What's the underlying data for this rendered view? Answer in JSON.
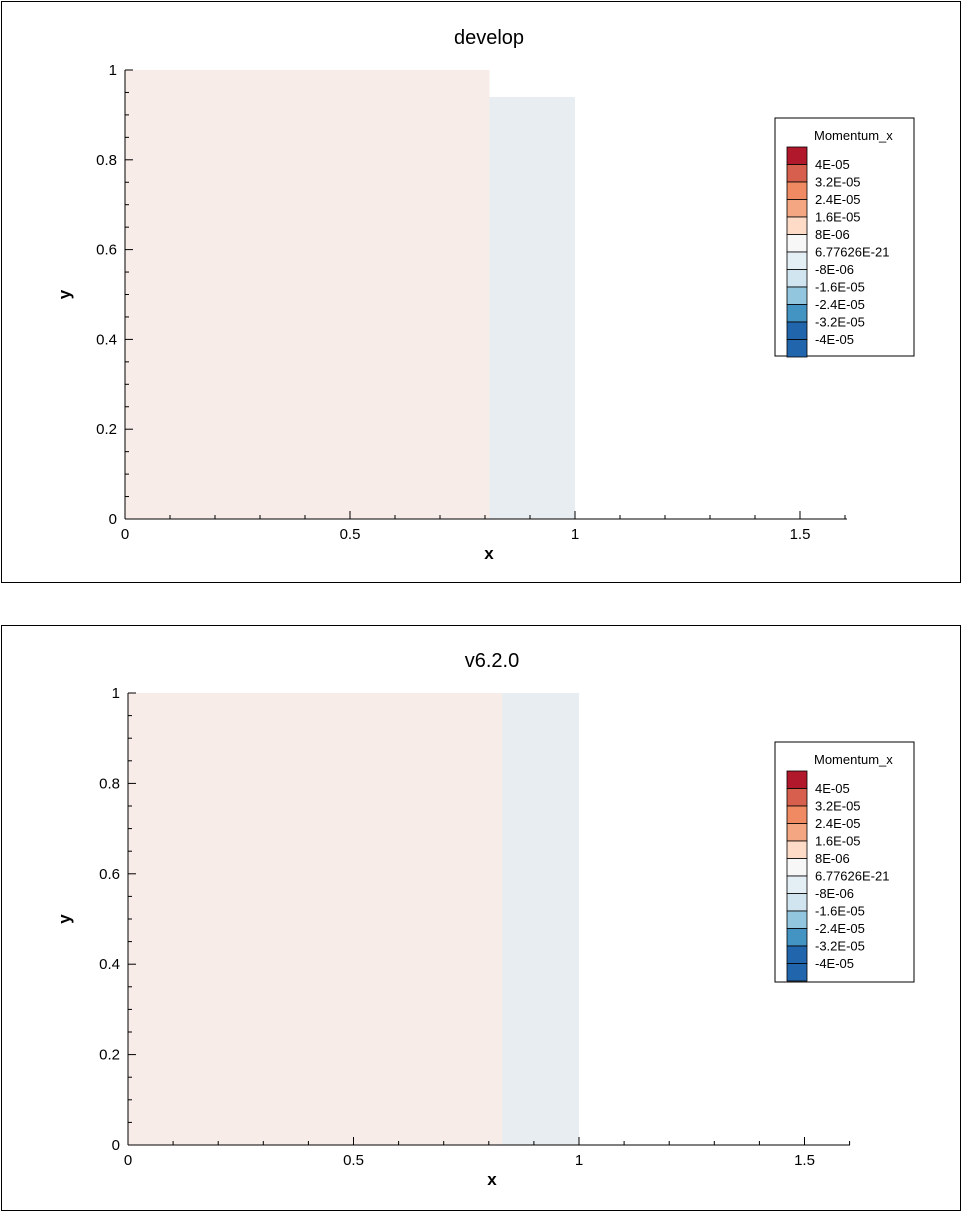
{
  "chart_data": [
    {
      "type": "heatmap",
      "title": "develop",
      "xlabel": "x",
      "ylabel": "y",
      "xlim": [
        0,
        1.6
      ],
      "ylim": [
        0,
        1
      ],
      "xticks": [
        "0",
        "0.5",
        "1",
        "1.5"
      ],
      "yticks": [
        "0",
        "0.2",
        "0.4",
        "0.6",
        "0.8",
        "1"
      ],
      "legend_title": "Momentum_x",
      "legend_levels": [
        "4E-05",
        "3.2E-05",
        "2.4E-05",
        "1.6E-05",
        "8E-06",
        "6.77626E-21",
        "-8E-06",
        "-1.6E-05",
        "-2.4E-05",
        "-3.2E-05",
        "-4E-05"
      ],
      "legend_colors": [
        "#b2182b",
        "#d6604d",
        "#ef8a62",
        "#f4a582",
        "#fddbc7",
        "#f7f7f7",
        "#e4eef5",
        "#d1e5f0",
        "#92c5de",
        "#4393c3",
        "#2166ac"
      ],
      "legend_placement": "right",
      "regions": [
        {
          "x": [
            0,
            0.81
          ],
          "y": [
            0,
            1
          ],
          "level": "8E-06"
        },
        {
          "x": [
            0.81,
            1.0
          ],
          "y": [
            0,
            0.94
          ],
          "level": "-8E-06"
        }
      ]
    },
    {
      "type": "heatmap",
      "title": "v6.2.0",
      "xlabel": "x",
      "ylabel": "y",
      "xlim": [
        0,
        1.6
      ],
      "ylim": [
        0,
        1
      ],
      "xticks": [
        "0",
        "0.5",
        "1",
        "1.5"
      ],
      "yticks": [
        "0",
        "0.2",
        "0.4",
        "0.6",
        "0.8",
        "1"
      ],
      "legend_title": "Momentum_x",
      "legend_levels": [
        "4E-05",
        "3.2E-05",
        "2.4E-05",
        "1.6E-05",
        "8E-06",
        "6.77626E-21",
        "-8E-06",
        "-1.6E-05",
        "-2.4E-05",
        "-3.2E-05",
        "-4E-05"
      ],
      "legend_colors": [
        "#b2182b",
        "#d6604d",
        "#ef8a62",
        "#f4a582",
        "#fddbc7",
        "#f7f7f7",
        "#e4eef5",
        "#d1e5f0",
        "#92c5de",
        "#4393c3",
        "#2166ac"
      ],
      "legend_placement": "right",
      "regions": [
        {
          "x": [
            0,
            0.83
          ],
          "y": [
            0,
            1
          ],
          "level": "8E-06"
        },
        {
          "x": [
            0.83,
            1.0
          ],
          "y": [
            0,
            1
          ],
          "level": "-8E-06"
        }
      ]
    }
  ],
  "colors": {
    "region_positive": "#f7ece8",
    "region_negative": "#e7edf1"
  }
}
